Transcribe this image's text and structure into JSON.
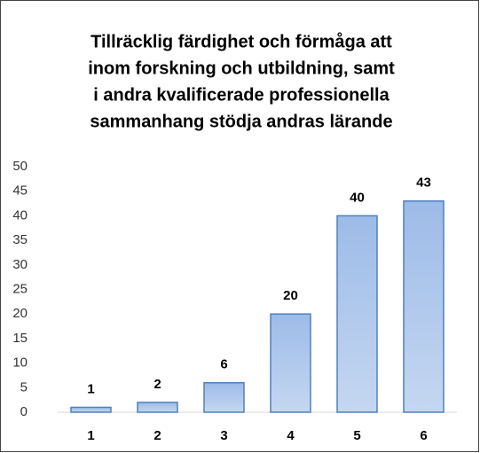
{
  "chart_data": {
    "type": "bar",
    "title": [
      "Tillräcklig färdighet och förmåga att",
      "inom forskning och utbildning, samt",
      "i andra kvalificerade professionella",
      "sammanhang stödja andras lärande"
    ],
    "categories": [
      "1",
      "2",
      "3",
      "4",
      "5",
      "6"
    ],
    "values": [
      1,
      2,
      6,
      20,
      40,
      43
    ],
    "color": "#a7c2ea",
    "ylim": [
      0,
      50
    ],
    "yticks": [
      0,
      5,
      10,
      15,
      20,
      25,
      30,
      35,
      40,
      45,
      50
    ],
    "grid": false
  }
}
